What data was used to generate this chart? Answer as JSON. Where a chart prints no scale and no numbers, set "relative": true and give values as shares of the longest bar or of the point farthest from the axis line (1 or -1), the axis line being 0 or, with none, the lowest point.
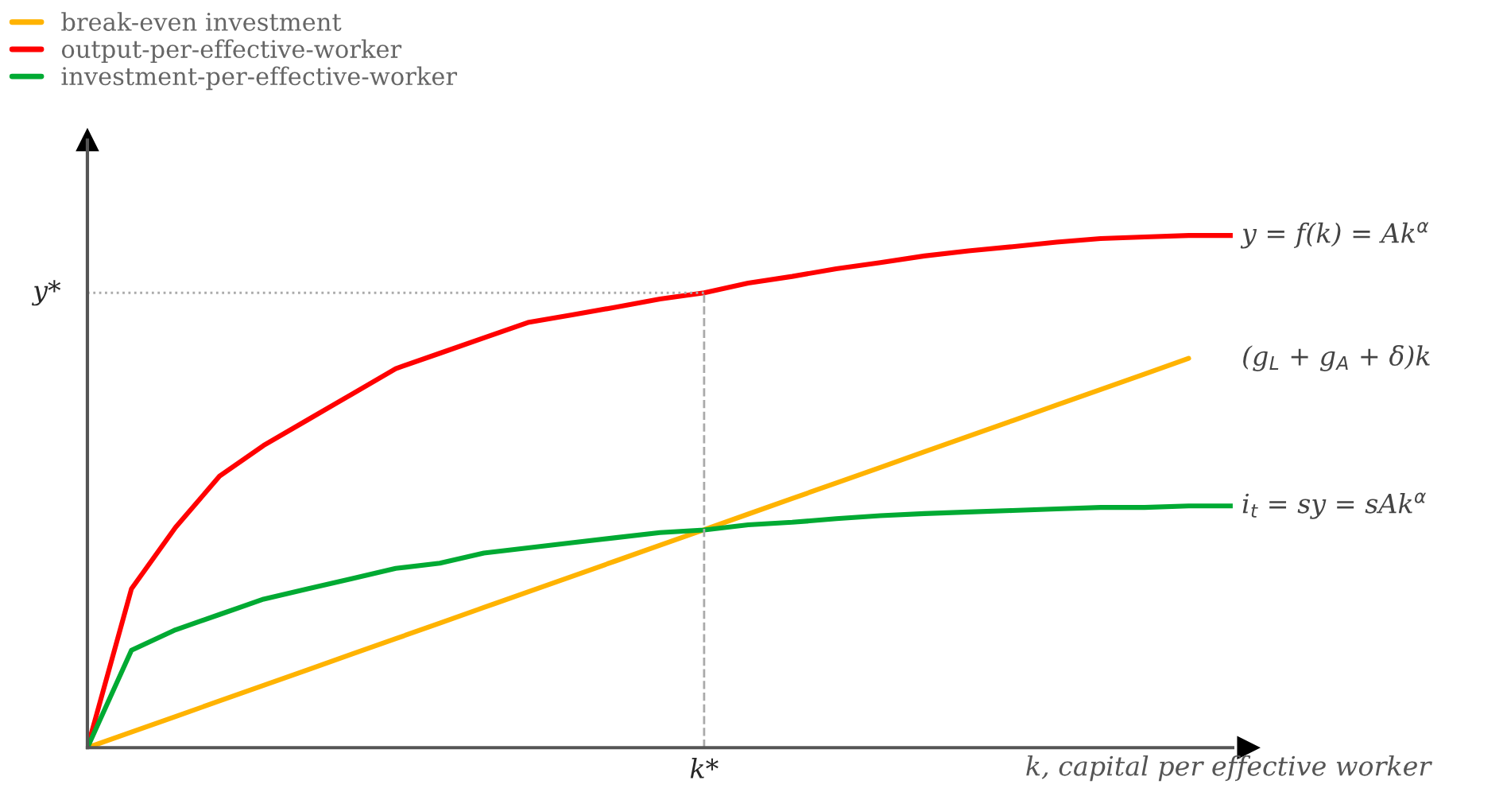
{
  "chart_data": {
    "type": "line",
    "relative": true,
    "xlabel": "k, capital per effective worker",
    "categories": [
      null,
      null,
      null,
      null,
      null,
      null,
      null,
      null,
      null,
      null,
      null,
      null,
      null,
      null,
      null,
      null,
      null,
      null,
      null,
      null,
      null,
      null,
      null,
      null,
      null,
      null,
      null
    ],
    "series": [
      {
        "name": "break-even investment",
        "color": "#ffb300",
        "values": [
          0,
          0.0304,
          0.0608,
          0.0912,
          0.1216,
          0.152,
          0.1824,
          0.2128,
          0.2432,
          0.2736,
          0.304,
          0.3344,
          0.3648,
          0.3952,
          0.4256,
          0.456,
          0.4864,
          0.5168,
          0.5472,
          0.5776,
          0.608,
          0.6384,
          0.6688,
          0.6992,
          0.7296,
          0.76,
          null
        ]
      },
      {
        "name": "output-per-effective-worker",
        "color": "#ff0000",
        "values": [
          0,
          0.31,
          0.43,
          0.53,
          0.59,
          0.64,
          0.69,
          0.74,
          0.77,
          0.8,
          0.83,
          0.845,
          0.86,
          0.876,
          0.888,
          0.907,
          0.92,
          0.935,
          0.947,
          0.96,
          0.97,
          0.978,
          0.987,
          0.994,
          0.997,
          1,
          1
        ]
      },
      {
        "name": "investment-per-effective-worker",
        "color": "#00aa33",
        "values": [
          0,
          0.19,
          0.23,
          0.26,
          0.29,
          0.31,
          0.33,
          0.35,
          0.36,
          0.38,
          0.39,
          0.4,
          0.41,
          0.42,
          0.425,
          0.435,
          0.44,
          0.447,
          0.453,
          0.457,
          0.46,
          0.463,
          0.466,
          0.469,
          0.469,
          0.472,
          0.472
        ]
      }
    ],
    "annotations": [
      "(g$_{L}$ + g$_{A}$ + δ)k",
      "y = f(k) = Ak$^{α}$",
      "i$_{t}$ = sy = sAk$^{α}$",
      "k*"
    ],
    "ref_lines": [
      {
        "axis": "y",
        "value": 0.888,
        "label": "y*",
        "line_style": "dotted",
        "color": "#aaaaaa"
      }
    ],
    "legend": "top left",
    "grid": false,
    "marker": "none",
    "line_style": "solid"
  }
}
